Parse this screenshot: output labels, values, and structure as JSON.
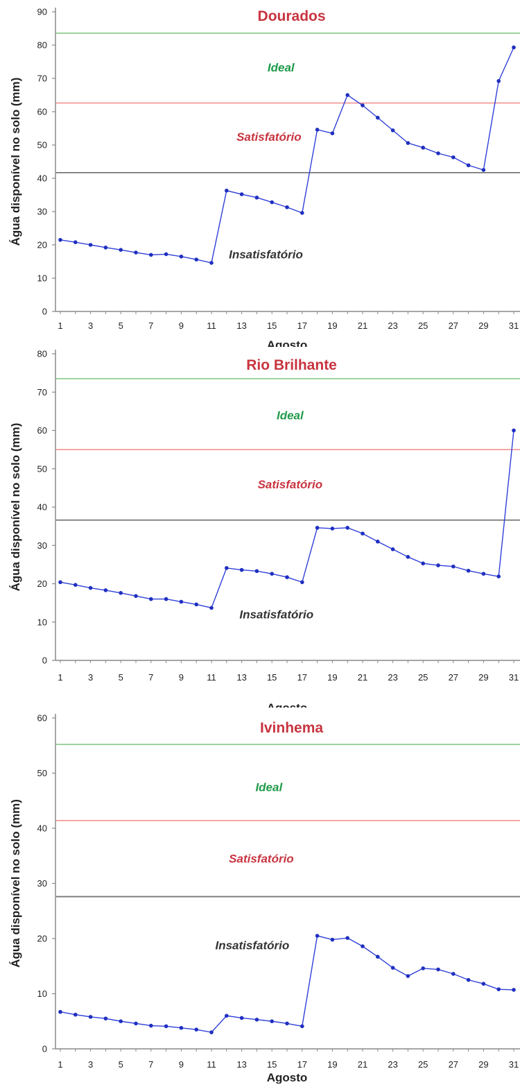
{
  "colors": {
    "title": "#c8343f",
    "ideal_line": "#7cc47e",
    "satisf_line": "#f08a8a",
    "insatisf_line": "#777777",
    "ideal_text": "#1f9a49",
    "satisf_text": "#c8343f",
    "insatisf_text": "#333333",
    "series": "#2f3fd8",
    "marker": "#1f2fc0",
    "axis": "#888888"
  },
  "chart_data": [
    {
      "type": "line",
      "title": "Dourados",
      "xlabel": "Agosto",
      "ylabel": "Água disponível no solo (mm)",
      "x": [
        1,
        2,
        3,
        4,
        5,
        6,
        7,
        8,
        9,
        10,
        11,
        12,
        13,
        14,
        15,
        16,
        17,
        18,
        19,
        20,
        21,
        22,
        23,
        24,
        25,
        26,
        27,
        28,
        29,
        30,
        31
      ],
      "x_ticks": [
        "1",
        "3",
        "5",
        "7",
        "9",
        "11",
        "13",
        "15",
        "17",
        "19",
        "21",
        "23",
        "25",
        "27",
        "29",
        "31"
      ],
      "y_ticks": [
        "0",
        "10",
        "20",
        "30",
        "40",
        "50",
        "60",
        "70",
        "80",
        "90"
      ],
      "ylim": [
        0,
        90
      ],
      "xlim": [
        1,
        31
      ],
      "values": [
        21.5,
        20.8,
        20.0,
        19.2,
        18.5,
        17.7,
        17.0,
        17.2,
        16.5,
        15.6,
        14.6,
        36.3,
        35.2,
        34.2,
        32.8,
        31.3,
        29.6,
        54.6,
        53.5,
        65.0,
        61.9,
        58.2,
        54.4,
        50.6,
        49.2,
        47.5,
        46.3,
        43.9,
        42.5,
        69.2,
        79.3
      ],
      "thresholds": [
        {
          "value": 83.6,
          "kind": "ideal_line"
        },
        {
          "value": 62.6,
          "kind": "satisf_line"
        },
        {
          "value": 41.7,
          "kind": "insatisf_line"
        }
      ],
      "zone_labels": [
        {
          "text": "Ideal",
          "kind": "ideal_text",
          "x": 15.6,
          "y": 73.3
        },
        {
          "text": "Satisfatório",
          "kind": "satisf_text",
          "x": 14.8,
          "y": 52.5
        },
        {
          "text": "Insatisfatório",
          "kind": "insatisf_text",
          "x": 14.6,
          "y": 17.2
        }
      ]
    },
    {
      "type": "line",
      "title": "Rio Brilhante",
      "xlabel": "Agosto",
      "ylabel": "Água disponível no solo (mm)",
      "x": [
        1,
        2,
        3,
        4,
        5,
        6,
        7,
        8,
        9,
        10,
        11,
        12,
        13,
        14,
        15,
        16,
        17,
        18,
        19,
        20,
        21,
        22,
        23,
        24,
        25,
        26,
        27,
        28,
        29,
        30,
        31
      ],
      "x_ticks": [
        "1",
        "3",
        "5",
        "7",
        "9",
        "11",
        "13",
        "15",
        "17",
        "19",
        "21",
        "23",
        "25",
        "27",
        "29",
        "31"
      ],
      "y_ticks": [
        "0",
        "10",
        "20",
        "30",
        "40",
        "50",
        "60",
        "70",
        "80"
      ],
      "ylim": [
        0,
        80
      ],
      "xlim": [
        1,
        31
      ],
      "values": [
        20.4,
        19.7,
        18.9,
        18.3,
        17.6,
        16.8,
        16.0,
        16.0,
        15.3,
        14.6,
        13.7,
        24.1,
        23.6,
        23.3,
        22.6,
        21.7,
        20.4,
        34.6,
        34.4,
        34.6,
        33.1,
        31.0,
        29.0,
        27.0,
        25.3,
        24.8,
        24.5,
        23.4,
        22.6,
        21.9,
        60.0
      ],
      "thresholds": [
        {
          "value": 73.5,
          "kind": "ideal_line"
        },
        {
          "value": 55.0,
          "kind": "satisf_line"
        },
        {
          "value": 36.6,
          "kind": "insatisf_line"
        }
      ],
      "zone_labels": [
        {
          "text": "Ideal",
          "kind": "ideal_text",
          "x": 16.2,
          "y": 64.0
        },
        {
          "text": "Satisfatório",
          "kind": "satisf_text",
          "x": 16.2,
          "y": 46.0
        },
        {
          "text": "Insatisfatório",
          "kind": "insatisf_text",
          "x": 15.3,
          "y": 12.0
        }
      ]
    },
    {
      "type": "line",
      "title": "Ivinhema",
      "xlabel": "Agosto",
      "ylabel": "Água disponível no solo (mm)",
      "x": [
        1,
        2,
        3,
        4,
        5,
        6,
        7,
        8,
        9,
        10,
        11,
        12,
        13,
        14,
        15,
        16,
        17,
        18,
        19,
        20,
        21,
        22,
        23,
        24,
        25,
        26,
        27,
        28,
        29,
        30,
        31
      ],
      "x_ticks": [
        "1",
        "3",
        "5",
        "7",
        "9",
        "11",
        "13",
        "15",
        "17",
        "19",
        "21",
        "23",
        "25",
        "27",
        "29",
        "31"
      ],
      "y_ticks": [
        "0",
        "10",
        "20",
        "30",
        "40",
        "50",
        "60"
      ],
      "ylim": [
        0,
        60
      ],
      "xlim": [
        1,
        31
      ],
      "values": [
        6.7,
        6.2,
        5.8,
        5.5,
        5.0,
        4.6,
        4.2,
        4.1,
        3.8,
        3.5,
        3.0,
        6.0,
        5.6,
        5.3,
        5.0,
        4.6,
        4.1,
        20.5,
        19.8,
        20.1,
        18.6,
        16.7,
        14.7,
        13.2,
        14.6,
        14.4,
        13.6,
        12.5,
        11.8,
        10.8,
        10.7
      ],
      "thresholds": [
        {
          "value": 55.2,
          "kind": "ideal_line"
        },
        {
          "value": 41.4,
          "kind": "satisf_line"
        },
        {
          "value": 27.6,
          "kind": "insatisf_line"
        }
      ],
      "zone_labels": [
        {
          "text": "Ideal",
          "kind": "ideal_text",
          "x": 14.8,
          "y": 47.5
        },
        {
          "text": "Satisfatório",
          "kind": "satisf_text",
          "x": 14.3,
          "y": 34.5
        },
        {
          "text": "Insatisfatório",
          "kind": "insatisf_text",
          "x": 13.7,
          "y": 18.8
        }
      ]
    }
  ]
}
